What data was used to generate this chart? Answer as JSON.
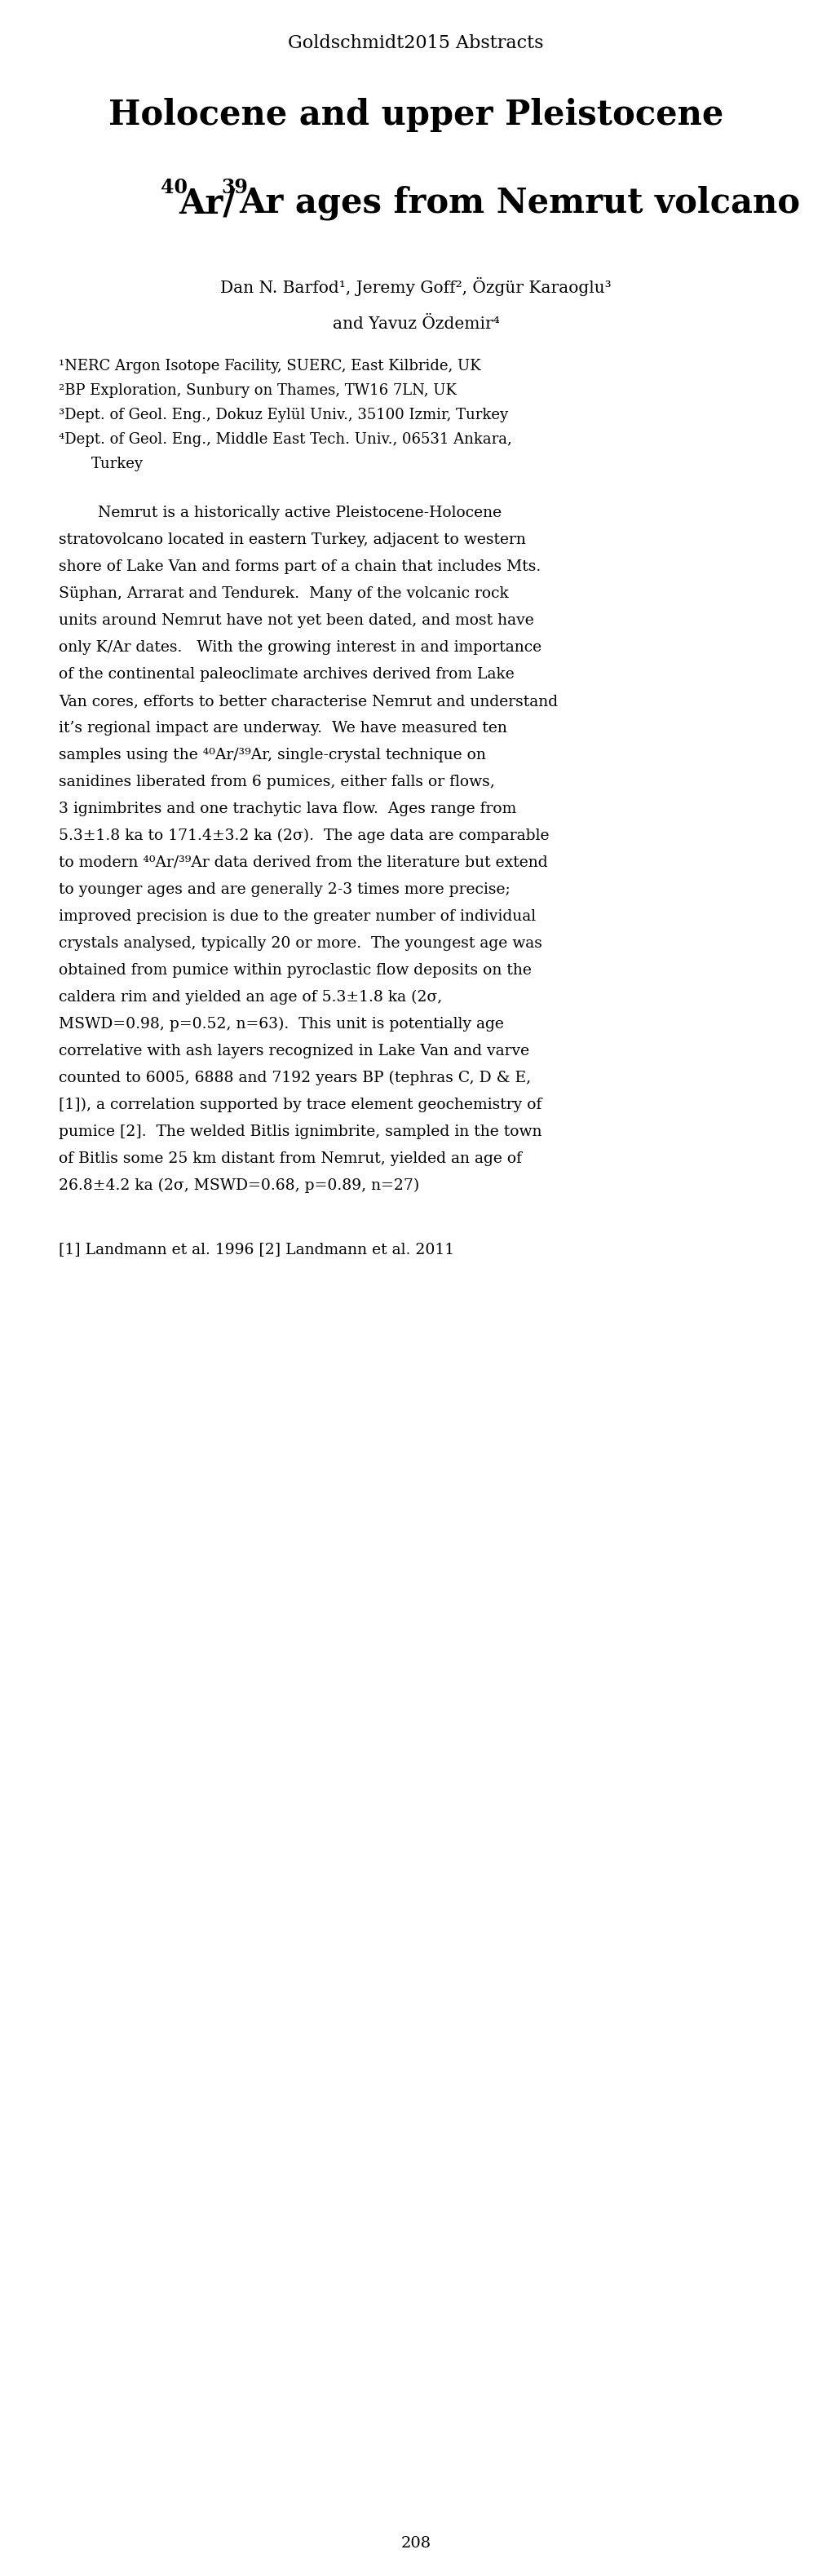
{
  "background_color": "#ffffff",
  "page_header": "Goldschmidt2015 Abstracts",
  "title_line1": "Holocene and upper Pleistocene",
  "title_sup40": "40",
  "title_sup39": "39",
  "title_line2_main": "Ar/Ar ages from Nemrut volcano",
  "authors_line1": "Dan N. Barfod¹, Jeremy Goff², Özgür Karaoglu³",
  "authors_line2": "and Yavuz Özdemir⁴",
  "affil1": "¹NERC Argon Isotope Facility, SUERC, East Kilbride, UK",
  "affil2": "²BP Exploration, Sunbury on Thames, TW16 7LN, UK",
  "affil3": "³Dept. of Geol. Eng., Dokuz Eylül Univ., 35100 Izmir, Turkey",
  "affil4a": "⁴Dept. of Geol. Eng., Middle East Tech. Univ., 06531 Ankara,",
  "affil4b": "Turkey",
  "abstract_lines": [
    "        Nemrut is a historically active Pleistocene-Holocene",
    "stratovolcano located in eastern Turkey, adjacent to western",
    "shore of Lake Van and forms part of a chain that includes Mts.",
    "Süphan, Arrarat and Tendurek.  Many of the volcanic rock",
    "units around Nemrut have not yet been dated, and most have",
    "only K/Ar dates.   With the growing interest in and importance",
    "of the continental paleoclimate archives derived from Lake",
    "Van cores, efforts to better characterise Nemrut and understand",
    "it’s regional impact are underway.  We have measured ten",
    "samples using the ⁴⁰Ar/³⁹Ar, single-crystal technique on",
    "sanidines liberated from 6 pumices, either falls or flows,",
    "3 ignimbrites and one trachytic lava flow.  Ages range from",
    "5.3±1.8 ka to 171.4±3.2 ka (2σ).  The age data are comparable",
    "to modern ⁴⁰Ar/³⁹Ar data derived from the literature but extend",
    "to younger ages and are generally 2-3 times more precise;",
    "improved precision is due to the greater number of individual",
    "crystals analysed, typically 20 or more.  The youngest age was",
    "obtained from pumice within pyroclastic flow deposits on the",
    "caldera rim and yielded an age of 5.3±1.8 ka (2σ,",
    "MSWD=0.98, p=0.52, n=63).  This unit is potentially age",
    "correlative with ash layers recognized in Lake Van and varve",
    "counted to 6005, 6888 and 7192 years BP (tephras C, D & E,",
    "[1]), a correlation supported by trace element geochemistry of",
    "pumice [2].  The welded Bitlis ignimbrite, sampled in the town",
    "of Bitlis some 25 km distant from Nemrut, yielded an age of",
    "26.8±4.2 ka (2σ, MSWD=0.68, p=0.89, n=27)"
  ],
  "references": "[1] Landmann et al. 1996 [2] Landmann et al. 2011",
  "page_number": "208"
}
